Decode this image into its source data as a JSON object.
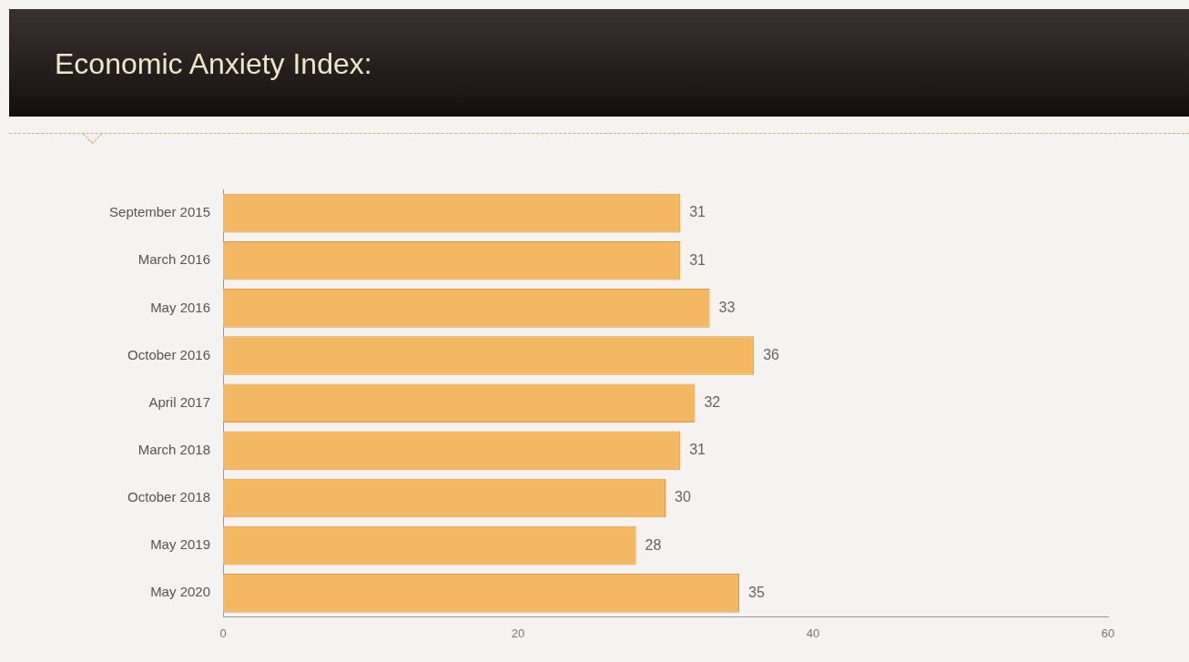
{
  "chart_data": {
    "type": "bar",
    "orientation": "horizontal",
    "title": "Economic Anxiety Index:",
    "categories": [
      "September 2015",
      "March 2016",
      "May 2016",
      "October 2016",
      "April 2017",
      "March 2018",
      "October 2018",
      "May 2019",
      "May 2020"
    ],
    "values": [
      31,
      31,
      33,
      36,
      32,
      31,
      30,
      28,
      35
    ],
    "color": "#f5b862",
    "xlim": [
      0,
      60
    ],
    "xticks": [
      0,
      20,
      40,
      60
    ],
    "grid": false,
    "legend": false,
    "data_labels": true
  }
}
